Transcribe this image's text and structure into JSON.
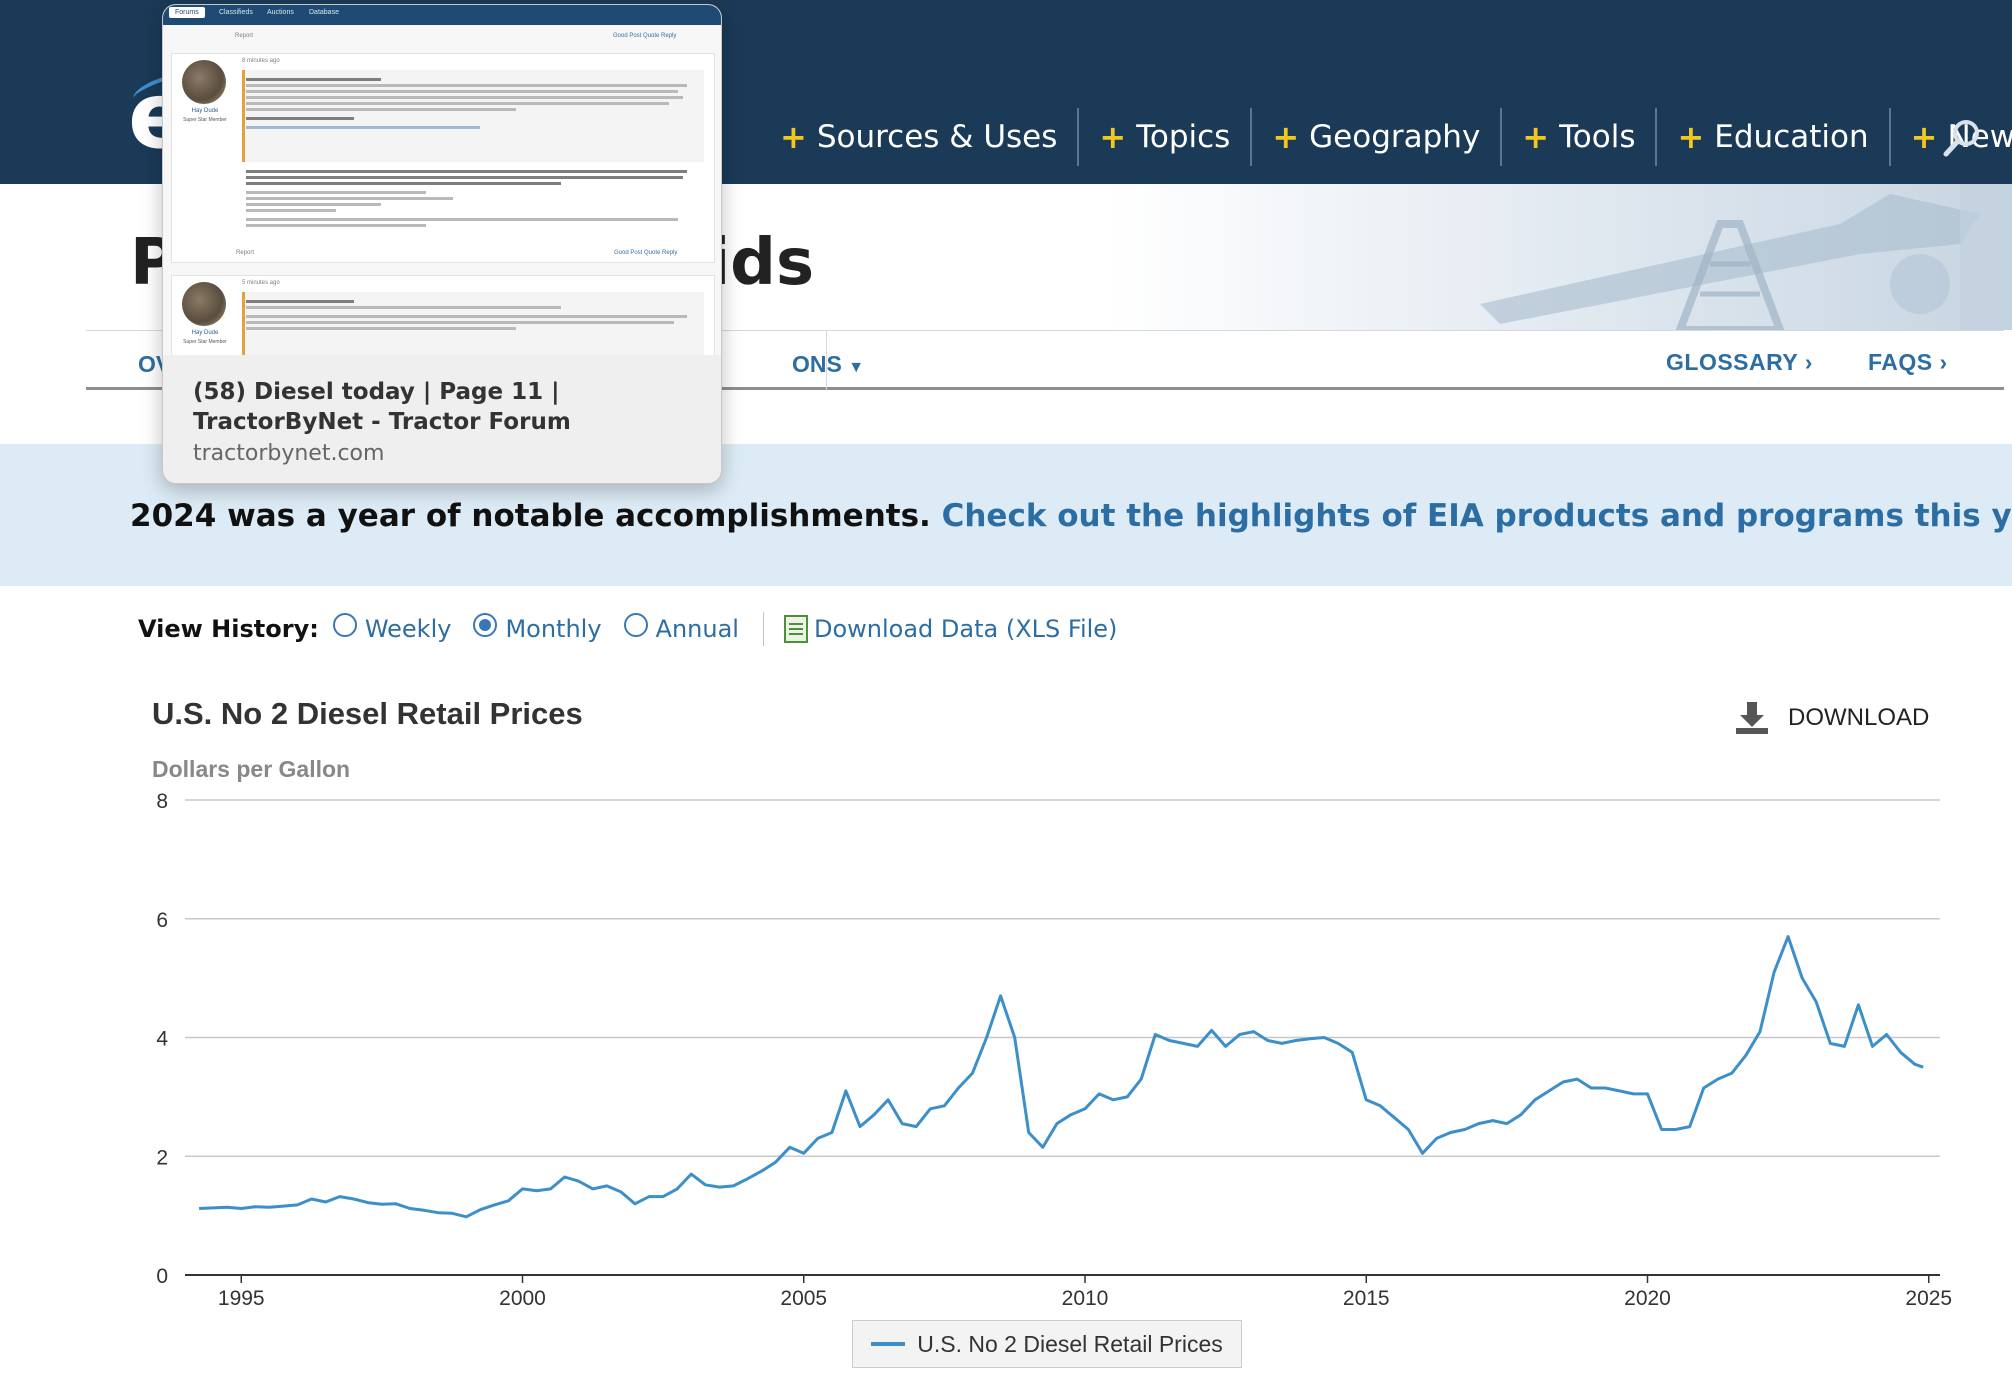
{
  "header": {
    "logo_text": "e",
    "nav": [
      {
        "label": "Sources & Uses"
      },
      {
        "label": "Topics"
      },
      {
        "label": "Geography"
      },
      {
        "label": "Tools"
      },
      {
        "label": "Education"
      },
      {
        "label": "News"
      }
    ],
    "search_icon": "search-icon",
    "brand_color": "#1b3a57",
    "accent_color": "#f2c81e"
  },
  "hero": {
    "title_visible_left": "P",
    "title_visible_right": "iquids"
  },
  "subnav": {
    "left_fragment": "OV",
    "mid_fragment": "ONS",
    "glossary": "GLOSSARY",
    "faqs": "FAQS"
  },
  "banner": {
    "text": "2024 was a year of notable accomplishments.",
    "link": "Check out the highlights of EIA products and programs this year."
  },
  "view_history": {
    "label": "View History:",
    "options": [
      "Weekly",
      "Monthly",
      "Annual"
    ],
    "selected": "Monthly",
    "download_label": "Download Data (XLS File)"
  },
  "chart": {
    "title": "U.S. No 2 Diesel Retail Prices",
    "units": "Dollars per Gallon",
    "download_label": "DOWNLOAD",
    "legend_label": "U.S. No 2 Diesel Retail Prices",
    "line_color": "#3c8fc9"
  },
  "chart_data": {
    "type": "line",
    "title": "U.S. No 2 Diesel Retail Prices",
    "ylabel": "Dollars per Gallon",
    "ylim": [
      0,
      8
    ],
    "yticks": [
      "0",
      "2",
      "4",
      "6",
      "8"
    ],
    "xticks": [
      "1995",
      "2000",
      "2005",
      "2010",
      "2015",
      "2020",
      "2025"
    ],
    "xlim": [
      1994.0,
      2025.2
    ],
    "grid": true,
    "legend_placement": "bottom",
    "series": [
      {
        "name": "U.S. No 2 Diesel Retail Prices",
        "x": [
          1994.25,
          1994.5,
          1994.75,
          1995.0,
          1995.25,
          1995.5,
          1995.75,
          1996.0,
          1996.25,
          1996.5,
          1996.75,
          1997.0,
          1997.25,
          1997.5,
          1997.75,
          1998.0,
          1998.25,
          1998.5,
          1998.75,
          1999.0,
          1999.25,
          1999.5,
          1999.75,
          2000.0,
          2000.25,
          2000.5,
          2000.75,
          2001.0,
          2001.25,
          2001.5,
          2001.75,
          2002.0,
          2002.25,
          2002.5,
          2002.75,
          2003.0,
          2003.25,
          2003.5,
          2003.75,
          2004.0,
          2004.25,
          2004.5,
          2004.75,
          2005.0,
          2005.25,
          2005.5,
          2005.75,
          2006.0,
          2006.25,
          2006.5,
          2006.75,
          2007.0,
          2007.25,
          2007.5,
          2007.75,
          2008.0,
          2008.25,
          2008.5,
          2008.75,
          2009.0,
          2009.25,
          2009.5,
          2009.75,
          2010.0,
          2010.25,
          2010.5,
          2010.75,
          2011.0,
          2011.25,
          2011.5,
          2011.75,
          2012.0,
          2012.25,
          2012.5,
          2012.75,
          2013.0,
          2013.25,
          2013.5,
          2013.75,
          2014.0,
          2014.25,
          2014.5,
          2014.75,
          2015.0,
          2015.25,
          2015.5,
          2015.75,
          2016.0,
          2016.25,
          2016.5,
          2016.75,
          2017.0,
          2017.25,
          2017.5,
          2017.75,
          2018.0,
          2018.25,
          2018.5,
          2018.75,
          2019.0,
          2019.25,
          2019.5,
          2019.75,
          2020.0,
          2020.25,
          2020.5,
          2020.75,
          2021.0,
          2021.25,
          2021.5,
          2021.75,
          2022.0,
          2022.25,
          2022.5,
          2022.75,
          2023.0,
          2023.25,
          2023.5,
          2023.75,
          2024.0,
          2024.25,
          2024.5,
          2024.75,
          2024.9
        ],
        "y": [
          1.12,
          1.13,
          1.14,
          1.12,
          1.15,
          1.14,
          1.16,
          1.18,
          1.28,
          1.23,
          1.32,
          1.28,
          1.22,
          1.19,
          1.2,
          1.12,
          1.09,
          1.05,
          1.04,
          0.98,
          1.1,
          1.18,
          1.25,
          1.45,
          1.42,
          1.45,
          1.65,
          1.58,
          1.45,
          1.5,
          1.4,
          1.2,
          1.32,
          1.32,
          1.45,
          1.7,
          1.52,
          1.48,
          1.5,
          1.62,
          1.75,
          1.9,
          2.15,
          2.05,
          2.3,
          2.4,
          3.1,
          2.5,
          2.7,
          2.95,
          2.55,
          2.5,
          2.8,
          2.85,
          3.15,
          3.4,
          4.0,
          4.7,
          4.0,
          2.4,
          2.15,
          2.55,
          2.7,
          2.8,
          3.05,
          2.95,
          3.0,
          3.3,
          4.05,
          3.95,
          3.9,
          3.85,
          4.12,
          3.85,
          4.05,
          4.1,
          3.95,
          3.9,
          3.95,
          3.98,
          4.0,
          3.9,
          3.75,
          2.95,
          2.85,
          2.65,
          2.45,
          2.05,
          2.3,
          2.4,
          2.45,
          2.55,
          2.6,
          2.55,
          2.7,
          2.95,
          3.1,
          3.25,
          3.3,
          3.15,
          3.15,
          3.1,
          3.05,
          3.05,
          2.45,
          2.45,
          2.5,
          3.15,
          3.3,
          3.4,
          3.7,
          4.1,
          5.1,
          5.7,
          5.0,
          4.6,
          3.9,
          3.85,
          4.55,
          3.85,
          4.05,
          3.75,
          3.55,
          3.5
        ]
      }
    ]
  },
  "popup": {
    "title": "(58) Diesel today | Page 11 | TractorByNet - Tractor Forum",
    "domain": "tractorbynet.com",
    "thumb_tabs": [
      "Forums",
      "Classifieds",
      "Auctions",
      "Database"
    ],
    "thumb_user": "Hay Dude",
    "thumb_role": "Super Star Member",
    "thumb_report": "Report",
    "thumb_actions": "Good Post  Quote  Reply",
    "thumb_time_1": "8 minutes ago",
    "thumb_time_2": "5 minutes ago"
  }
}
